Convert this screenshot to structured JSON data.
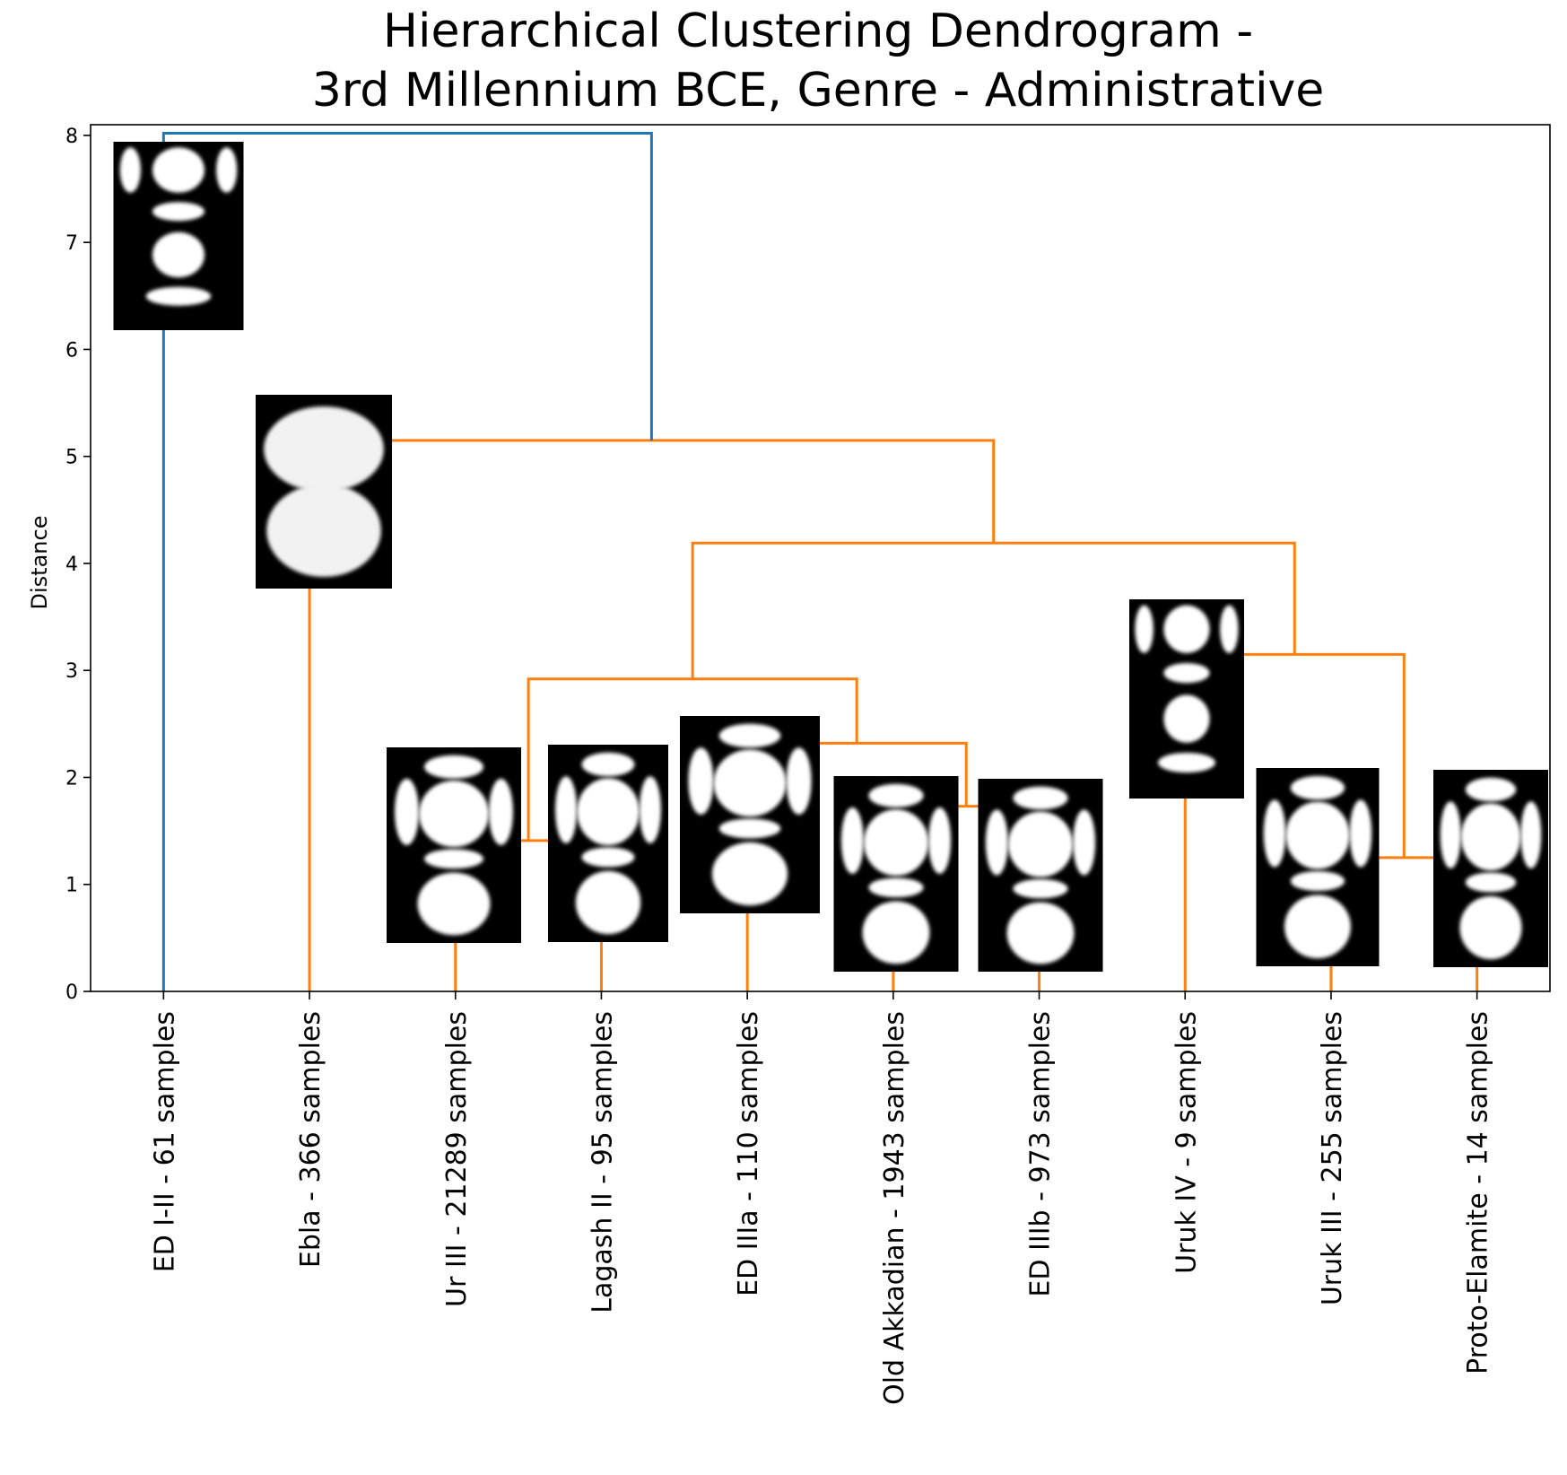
{
  "chart_data": {
    "type": "dendrogram",
    "title_lines": [
      "Hierarchical Clustering Dendrogram -",
      "3rd Millennium BCE, Genre - Administrative"
    ],
    "xlabel": "",
    "ylabel": "Distance",
    "ylim": [
      0,
      8.1
    ],
    "yticks": [
      0,
      1,
      2,
      3,
      4,
      5,
      6,
      7,
      8
    ],
    "grid": false,
    "leaves": [
      "ED I-II - 61 samples",
      "Ebla - 366 samples",
      "Ur III - 21289 samples",
      "Lagash II - 95 samples",
      "ED IIIa - 110 samples",
      "Old Akkadian - 1943 samples",
      "ED IIIb - 973 samples",
      "Uruk IV - 9 samples",
      "Uruk III - 255 samples",
      "Proto-Elamite - 14 samples"
    ],
    "merges": [
      {
        "left": 5,
        "right": 6,
        "height": 1.73,
        "color": "#ff7f0e"
      },
      {
        "left": 4,
        "right": "m0",
        "height": 2.32,
        "color": "#ff7f0e"
      },
      {
        "left": 2,
        "right": 3,
        "height": 1.41,
        "color": "#ff7f0e"
      },
      {
        "left": "m2",
        "right": "m1",
        "height": 2.92,
        "color": "#ff7f0e"
      },
      {
        "left": 8,
        "right": 9,
        "height": 1.25,
        "color": "#ff7f0e"
      },
      {
        "left": 7,
        "right": "m4",
        "height": 3.15,
        "color": "#ff7f0e"
      },
      {
        "left": "m3",
        "right": "m5",
        "height": 4.19,
        "color": "#ff7f0e"
      },
      {
        "left": 1,
        "right": "m6",
        "height": 5.15,
        "color": "#ff7f0e"
      },
      {
        "left": 0,
        "right": "m7",
        "height": 8.02,
        "color": "#1f77b4"
      }
    ],
    "leaf_colors": [
      "#1f77b4",
      "#ff7f0e",
      "#ff7f0e",
      "#ff7f0e",
      "#ff7f0e",
      "#ff7f0e",
      "#ff7f0e",
      "#ff7f0e",
      "#ff7f0e",
      "#ff7f0e"
    ],
    "thumbnail_style": [
      "tall",
      "blob",
      "cross",
      "cross",
      "cross",
      "cross",
      "cross",
      "tall",
      "cross",
      "cross"
    ]
  }
}
